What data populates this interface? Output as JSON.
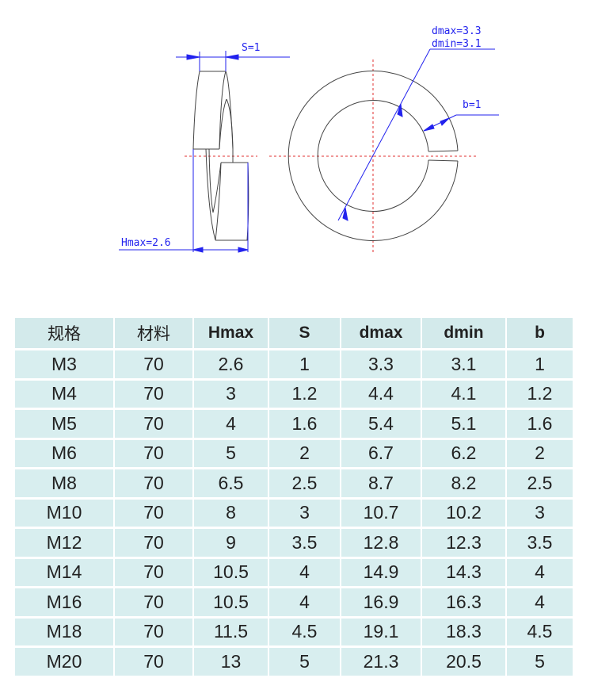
{
  "drawing": {
    "s_label": "S=1",
    "hmax_label": "Hmax=2.6",
    "dmax_label": "dmax=3.3",
    "dmin_label": "dmin=3.1",
    "b_label": "b=1",
    "dimension_color": "#2222ee",
    "centerline_color": "#e03030"
  },
  "table": {
    "headers": [
      "规格",
      "材料",
      "Hmax",
      "S",
      "dmax",
      "dmin",
      "b"
    ],
    "rows": [
      [
        "M3",
        "70",
        "2.6",
        "1",
        "3.3",
        "3.1",
        "1"
      ],
      [
        "M4",
        "70",
        "3",
        "1.2",
        "4.4",
        "4.1",
        "1.2"
      ],
      [
        "M5",
        "70",
        "4",
        "1.6",
        "5.4",
        "5.1",
        "1.6"
      ],
      [
        "M6",
        "70",
        "5",
        "2",
        "6.7",
        "6.2",
        "2"
      ],
      [
        "M8",
        "70",
        "6.5",
        "2.5",
        "8.7",
        "8.2",
        "2.5"
      ],
      [
        "M10",
        "70",
        "8",
        "3",
        "10.7",
        "10.2",
        "3"
      ],
      [
        "M12",
        "70",
        "9",
        "3.5",
        "12.8",
        "12.3",
        "3.5"
      ],
      [
        "M14",
        "70",
        "10.5",
        "4",
        "14.9",
        "14.3",
        "4"
      ],
      [
        "M16",
        "70",
        "10.5",
        "4",
        "16.9",
        "16.3",
        "4"
      ],
      [
        "M18",
        "70",
        "11.5",
        "4.5",
        "19.1",
        "18.3",
        "4.5"
      ],
      [
        "M20",
        "70",
        "13",
        "5",
        "21.3",
        "20.5",
        "5"
      ]
    ]
  }
}
